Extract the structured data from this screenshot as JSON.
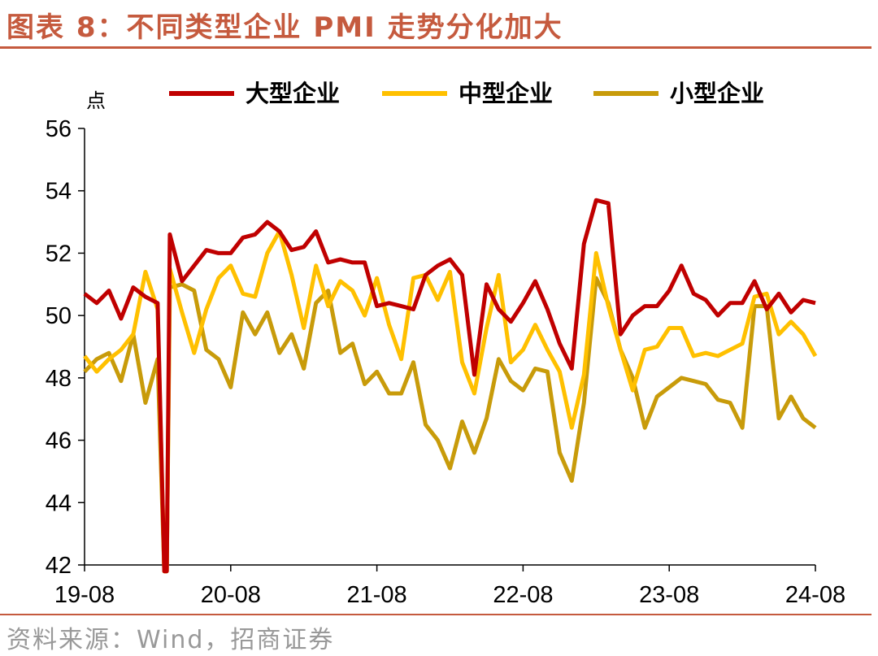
{
  "header": {
    "title": "图表 8：不同类型企业 PMI 走势分化加大"
  },
  "footer": {
    "source": "资料来源：Wind，招商证券"
  },
  "chart_data": {
    "type": "line",
    "unit_label": "点",
    "ylim": [
      42,
      56
    ],
    "yticks": [
      42,
      44,
      46,
      48,
      50,
      52,
      54,
      56
    ],
    "x_tick_labels": [
      "19-08",
      "20-08",
      "21-08",
      "22-08",
      "23-08",
      "24-08"
    ],
    "x_tick_indices": [
      0,
      12,
      24,
      36,
      48,
      60
    ],
    "x_start": "2019-08",
    "x_end": "2024-09",
    "legend_position": "top",
    "grid": false,
    "series": [
      {
        "name": "大型企业",
        "color": "#c00000",
        "values": [
          50.7,
          50.4,
          50.8,
          49.9,
          50.9,
          50.6,
          50.4,
          52.6,
          51.1,
          51.6,
          52.1,
          52.0,
          52.0,
          52.5,
          52.6,
          53.0,
          52.7,
          52.1,
          52.2,
          52.7,
          51.7,
          51.8,
          51.7,
          51.7,
          50.3,
          50.4,
          50.3,
          50.2,
          51.3,
          51.6,
          51.8,
          51.3,
          48.1,
          51.0,
          50.2,
          49.8,
          50.4,
          51.1,
          50.2,
          49.1,
          48.3,
          52.3,
          53.7,
          53.6,
          49.4,
          50.0,
          50.3,
          50.3,
          50.8,
          51.6,
          50.7,
          50.5,
          50.0,
          50.4,
          50.4,
          51.1,
          50.2,
          50.7,
          50.1,
          50.5,
          50.4
        ],
        "gap_values": [
          50.3,
          52.6
        ]
      },
      {
        "name": "中型企业",
        "color": "#ffc000",
        "values": [
          48.7,
          48.2,
          48.6,
          48.9,
          49.4,
          51.4,
          50.2,
          51.5,
          50.1,
          48.8,
          50.2,
          51.2,
          51.6,
          50.7,
          50.6,
          52.0,
          52.7,
          51.3,
          49.6,
          51.6,
          50.3,
          51.1,
          50.8,
          50.0,
          51.2,
          49.7,
          48.6,
          51.2,
          51.3,
          50.5,
          51.4,
          48.5,
          47.5,
          49.6,
          51.3,
          48.5,
          48.9,
          49.7,
          48.9,
          48.2,
          46.4,
          48.1,
          52.0,
          50.3,
          48.9,
          47.6,
          48.9,
          49.0,
          49.6,
          49.6,
          48.7,
          48.8,
          48.7,
          48.9,
          49.1,
          50.6,
          50.7,
          49.4,
          49.8,
          49.4,
          48.7
        ],
        "gap_values": [
          50.2,
          51.5
        ]
      },
      {
        "name": "小型企业",
        "color": "#c89b0a",
        "values": [
          48.2,
          48.6,
          48.8,
          47.9,
          49.4,
          47.2,
          48.6,
          50.9,
          51.0,
          50.8,
          48.9,
          48.6,
          47.7,
          50.1,
          49.4,
          50.1,
          48.8,
          49.4,
          48.3,
          50.4,
          50.8,
          48.8,
          49.1,
          47.8,
          48.2,
          47.5,
          47.5,
          48.5,
          46.5,
          46.0,
          45.1,
          46.6,
          45.6,
          46.7,
          48.6,
          47.9,
          47.6,
          48.3,
          48.2,
          45.6,
          44.7,
          47.2,
          51.2,
          50.4,
          48.9,
          48.0,
          46.4,
          47.4,
          47.7,
          48.0,
          47.9,
          47.8,
          47.3,
          47.2,
          46.4,
          50.3,
          50.3,
          46.7,
          47.4,
          46.7,
          46.4
        ],
        "gap_values": [
          48.6,
          50.9
        ]
      }
    ]
  }
}
